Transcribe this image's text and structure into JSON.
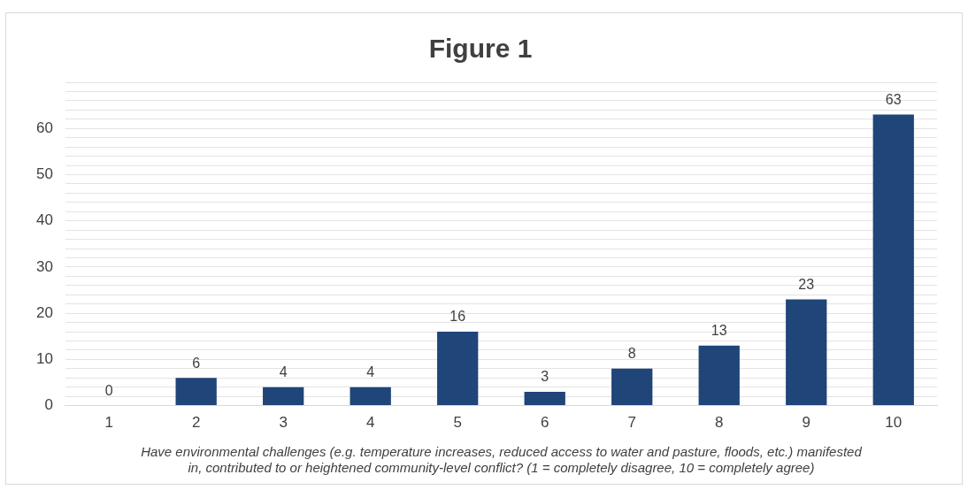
{
  "chart_data": {
    "type": "bar",
    "title": "Figure 1",
    "xlabel": "Have environmental challenges (e.g. temperature increases, reduced access to water and pasture, floods, etc.) manifested\nin, contributed to or heightened community-level conflict? (1 = completely disagree, 10 = completely agree)",
    "categories": [
      "1",
      "2",
      "3",
      "4",
      "5",
      "6",
      "7",
      "8",
      "9",
      "10"
    ],
    "values": [
      0,
      6,
      4,
      4,
      16,
      3,
      8,
      13,
      23,
      63
    ],
    "color": "#1f4579",
    "ylim": [
      0,
      70
    ],
    "yticks": [
      0,
      {
        "value": 2,
        "label": null
      },
      {
        "value": 4,
        "label": null
      },
      {
        "value": 6,
        "label": null
      },
      {
        "value": 8,
        "label": null
      },
      10,
      {
        "value": 12,
        "label": null
      },
      {
        "value": 14,
        "label": null
      },
      {
        "value": 16,
        "label": null
      },
      {
        "value": 18,
        "label": null
      },
      20,
      {
        "value": 22,
        "label": null
      },
      {
        "value": 24,
        "label": null
      },
      {
        "value": 26,
        "label": null
      },
      {
        "value": 28,
        "label": null
      },
      30,
      {
        "value": 32,
        "label": null
      },
      {
        "value": 34,
        "label": null
      },
      {
        "value": 36,
        "label": null
      },
      {
        "value": 38,
        "label": null
      },
      40,
      {
        "value": 42,
        "label": null
      },
      {
        "value": 44,
        "label": null
      },
      {
        "value": 46,
        "label": null
      },
      {
        "value": 48,
        "label": null
      },
      50,
      {
        "value": 52,
        "label": null
      },
      {
        "value": 54,
        "label": null
      },
      {
        "value": 56,
        "label": null
      },
      {
        "value": 58,
        "label": null
      },
      60,
      {
        "value": 62,
        "label": null
      },
      {
        "value": 64,
        "label": null
      },
      {
        "value": 66,
        "label": null
      },
      {
        "value": 68,
        "label": null
      },
      {
        "value": 70,
        "label": null
      }
    ],
    "grid": "y",
    "legend": false,
    "data_labels": true
  }
}
